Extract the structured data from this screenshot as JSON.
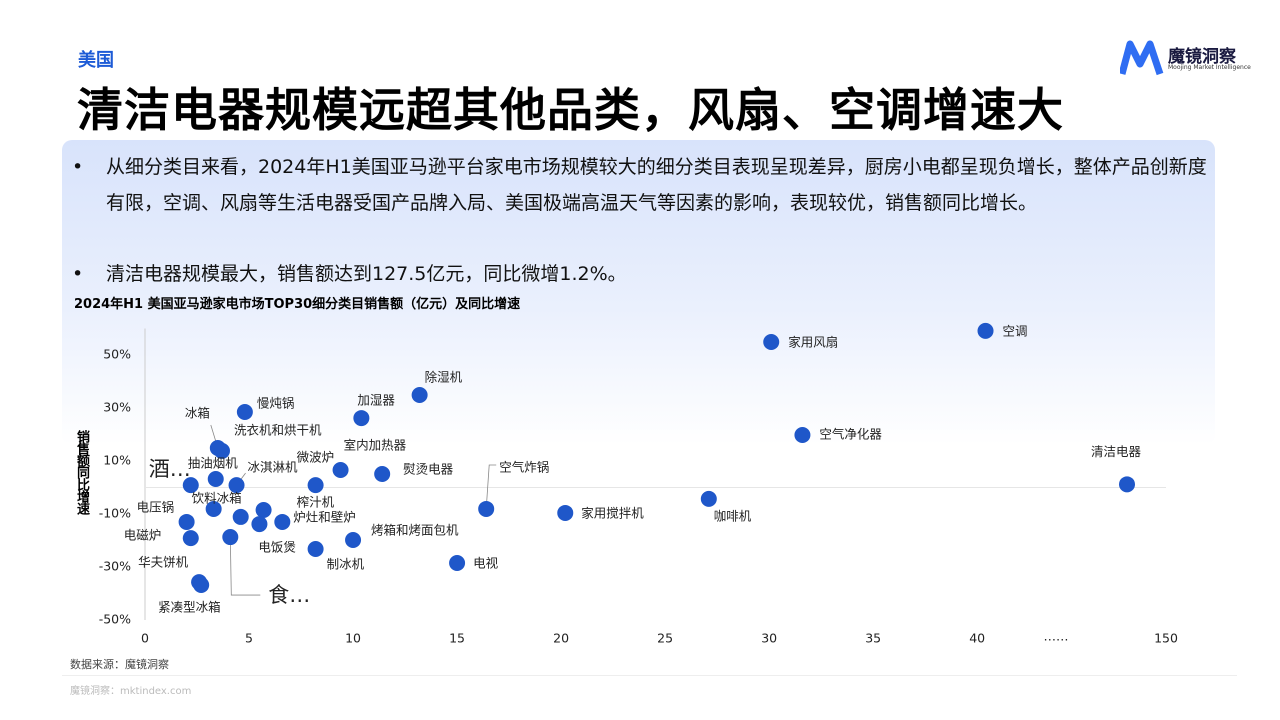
{
  "header": {
    "tag": "美国",
    "title": "清洁电器规模远超其他品类，风扇、空调增速大",
    "logo": "魔镜洞察",
    "logo_sub": "Moojing Market Intelligence"
  },
  "bullets": [
    "从细分类目来看，2024年H1美国亚马逊平台家电市场规模较大的细分类目表现呈现差异，厨房小电都呈现负增长，整体产品创新度有限，空调、风扇等生活电器受国产品牌入局、美国极端高温天气等因素的影响，表现较优，销售额同比增长。",
    "清洁电器规模最大，销售额达到127.5亿元，同比微增1.2%。"
  ],
  "chart_data": {
    "type": "scatter",
    "title": "2024年H1 美国亚马逊家电市场TOP30细分类目销售额（亿元）及同比增速",
    "y_label": "销售额同比增速",
    "color": "#1f57c9",
    "labels": [
      "空调",
      "家用风扇",
      "空气净化器",
      "清洁电器",
      "咖啡机",
      "家用搅拌机",
      "电视",
      "空气炸锅",
      "除湿机",
      "加湿器",
      "熨烫电器",
      "室内加热器",
      "微波炉",
      "烤箱和烤面包机",
      "制冰机",
      "慢炖锅",
      "冰箱",
      "洗衣机和烘干机",
      "抽油烟机",
      "冰淇淋机",
      "酒…",
      "饮料冰箱",
      "榨汁机",
      "炉灶和壁炉",
      "电压锅",
      "电磁炉",
      "电饭煲",
      null,
      "食…",
      "华夫饼机",
      "紧凑型冰箱"
    ],
    "x": [
      40.4,
      30.1,
      31.6,
      127.5,
      27.1,
      20.2,
      15.0,
      16.4,
      13.2,
      10.4,
      11.4,
      9.4,
      8.2,
      10.0,
      8.2,
      4.8,
      3.5,
      3.7,
      3.4,
      4.4,
      2.2,
      3.3,
      5.7,
      6.6,
      2.0,
      2.2,
      5.5,
      4.6,
      4.1,
      2.6,
      2.7
    ],
    "values": [
      59.1,
      54.9,
      19.8,
      1.2,
      -4.3,
      -9.6,
      -28.5,
      -8.1,
      34.9,
      26.2,
      5.1,
      6.6,
      0.9,
      -19.8,
      -23.2,
      28.5,
      14.9,
      13.8,
      3.2,
      0.9,
      0.9,
      -8.1,
      -8.5,
      -13.0,
      -13.0,
      -19.1,
      -13.8,
      -11.1,
      -18.7,
      -35.7,
      -36.8
    ],
    "xlim": [
      0,
      150
    ],
    "xbreak": [
      41,
      120
    ],
    "xbreak_label": "……",
    "xticks": [
      0,
      5,
      10,
      15,
      20,
      25,
      30,
      35,
      40,
      150
    ],
    "ylim": [
      -50,
      60
    ],
    "yticks": [
      {
        "value": -50,
        "label": "-50%"
      },
      {
        "value": -30,
        "label": "-30%"
      },
      {
        "value": -10,
        "label": "-10%"
      },
      {
        "value": 10,
        "label": "10%"
      },
      {
        "value": 30,
        "label": "30%"
      },
      {
        "value": 50,
        "label": "50%"
      }
    ]
  },
  "source": "数据来源：魔镜洞察",
  "footer": "魔镜洞察：mktindex.com"
}
